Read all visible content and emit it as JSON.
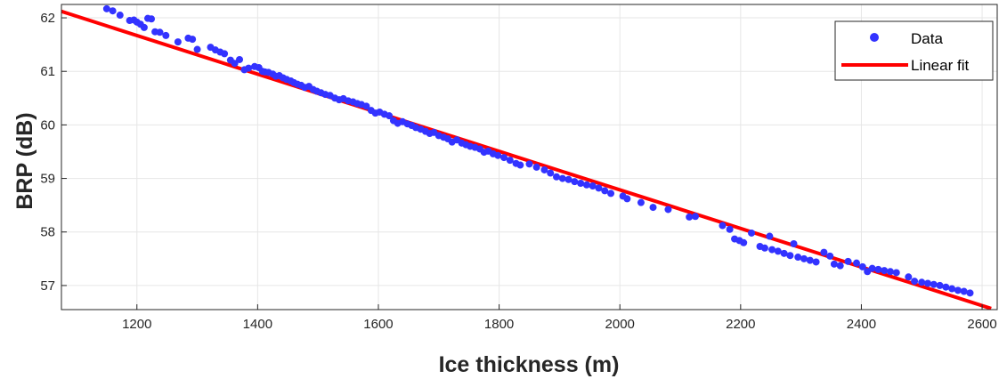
{
  "chart_data": {
    "type": "scatter",
    "xlabel": "Ice thickness (m)",
    "ylabel": "BRP (dB)",
    "xlim": [
      1075,
      2625
    ],
    "ylim": [
      56.55,
      62.25
    ],
    "xticks": [
      "1200",
      "1400",
      "1600",
      "1800",
      "2000",
      "2200",
      "2400",
      "2600"
    ],
    "yticks": [
      "57",
      "58",
      "59",
      "60",
      "61",
      "62"
    ],
    "grid": true,
    "legend_position": "top-right",
    "colors": {
      "data": "#3333ff",
      "fit": "#ff0000"
    },
    "series": [
      {
        "name": "Data",
        "marker": "circle",
        "points": [
          [
            1150,
            62.17
          ],
          [
            1160,
            62.13
          ],
          [
            1172,
            62.05
          ],
          [
            1188,
            61.95
          ],
          [
            1195,
            61.96
          ],
          [
            1200,
            61.92
          ],
          [
            1206,
            61.88
          ],
          [
            1212,
            61.82
          ],
          [
            1218,
            61.99
          ],
          [
            1224,
            61.98
          ],
          [
            1230,
            61.74
          ],
          [
            1238,
            61.73
          ],
          [
            1248,
            61.67
          ],
          [
            1268,
            61.55
          ],
          [
            1285,
            61.62
          ],
          [
            1292,
            61.6
          ],
          [
            1300,
            61.41
          ],
          [
            1322,
            61.45
          ],
          [
            1330,
            61.4
          ],
          [
            1338,
            61.36
          ],
          [
            1345,
            61.33
          ],
          [
            1355,
            61.21
          ],
          [
            1362,
            61.15
          ],
          [
            1370,
            61.22
          ],
          [
            1378,
            61.03
          ],
          [
            1385,
            61.06
          ],
          [
            1395,
            61.09
          ],
          [
            1402,
            61.07
          ],
          [
            1408,
            61.0
          ],
          [
            1412,
            60.99
          ],
          [
            1418,
            60.98
          ],
          [
            1425,
            60.95
          ],
          [
            1430,
            60.91
          ],
          [
            1436,
            60.92
          ],
          [
            1442,
            60.88
          ],
          [
            1448,
            60.85
          ],
          [
            1455,
            60.82
          ],
          [
            1460,
            60.79
          ],
          [
            1466,
            60.76
          ],
          [
            1472,
            60.74
          ],
          [
            1478,
            60.7
          ],
          [
            1485,
            60.72
          ],
          [
            1492,
            60.66
          ],
          [
            1498,
            60.63
          ],
          [
            1505,
            60.6
          ],
          [
            1512,
            60.57
          ],
          [
            1520,
            60.55
          ],
          [
            1528,
            60.5
          ],
          [
            1535,
            60.47
          ],
          [
            1542,
            60.49
          ],
          [
            1550,
            60.45
          ],
          [
            1558,
            60.43
          ],
          [
            1565,
            60.4
          ],
          [
            1572,
            60.38
          ],
          [
            1580,
            60.35
          ],
          [
            1588,
            60.27
          ],
          [
            1595,
            60.22
          ],
          [
            1602,
            60.24
          ],
          [
            1610,
            60.2
          ],
          [
            1618,
            60.17
          ],
          [
            1625,
            60.08
          ],
          [
            1632,
            60.03
          ],
          [
            1640,
            60.06
          ],
          [
            1648,
            60.02
          ],
          [
            1655,
            59.99
          ],
          [
            1662,
            59.95
          ],
          [
            1670,
            59.92
          ],
          [
            1678,
            59.88
          ],
          [
            1685,
            59.84
          ],
          [
            1692,
            59.86
          ],
          [
            1700,
            59.8
          ],
          [
            1708,
            59.77
          ],
          [
            1715,
            59.74
          ],
          [
            1722,
            59.68
          ],
          [
            1730,
            59.72
          ],
          [
            1738,
            59.66
          ],
          [
            1745,
            59.63
          ],
          [
            1752,
            59.6
          ],
          [
            1760,
            59.58
          ],
          [
            1768,
            59.55
          ],
          [
            1775,
            59.49
          ],
          [
            1782,
            59.51
          ],
          [
            1790,
            59.46
          ],
          [
            1798,
            59.43
          ],
          [
            1808,
            59.39
          ],
          [
            1818,
            59.34
          ],
          [
            1828,
            59.28
          ],
          [
            1835,
            59.25
          ],
          [
            1850,
            59.27
          ],
          [
            1862,
            59.21
          ],
          [
            1875,
            59.16
          ],
          [
            1885,
            59.1
          ],
          [
            1895,
            59.03
          ],
          [
            1905,
            59.0
          ],
          [
            1915,
            58.98
          ],
          [
            1925,
            58.94
          ],
          [
            1935,
            58.91
          ],
          [
            1945,
            58.88
          ],
          [
            1955,
            58.86
          ],
          [
            1965,
            58.82
          ],
          [
            1975,
            58.77
          ],
          [
            1985,
            58.72
          ],
          [
            2005,
            58.67
          ],
          [
            2012,
            58.62
          ],
          [
            2035,
            58.55
          ],
          [
            2055,
            58.46
          ],
          [
            2080,
            58.42
          ],
          [
            2115,
            58.28
          ],
          [
            2125,
            58.29
          ],
          [
            2170,
            58.12
          ],
          [
            2182,
            58.05
          ],
          [
            2190,
            57.87
          ],
          [
            2198,
            57.84
          ],
          [
            2205,
            57.8
          ],
          [
            2218,
            57.98
          ],
          [
            2232,
            57.73
          ],
          [
            2240,
            57.7
          ],
          [
            2248,
            57.92
          ],
          [
            2252,
            57.67
          ],
          [
            2262,
            57.64
          ],
          [
            2272,
            57.6
          ],
          [
            2282,
            57.56
          ],
          [
            2288,
            57.78
          ],
          [
            2295,
            57.53
          ],
          [
            2305,
            57.5
          ],
          [
            2315,
            57.47
          ],
          [
            2325,
            57.44
          ],
          [
            2338,
            57.62
          ],
          [
            2348,
            57.55
          ],
          [
            2355,
            57.4
          ],
          [
            2365,
            57.37
          ],
          [
            2378,
            57.45
          ],
          [
            2392,
            57.42
          ],
          [
            2402,
            57.35
          ],
          [
            2410,
            57.26
          ],
          [
            2418,
            57.32
          ],
          [
            2428,
            57.3
          ],
          [
            2438,
            57.28
          ],
          [
            2448,
            57.26
          ],
          [
            2458,
            57.24
          ],
          [
            2478,
            57.16
          ],
          [
            2488,
            57.08
          ],
          [
            2500,
            57.06
          ],
          [
            2510,
            57.04
          ],
          [
            2520,
            57.02
          ],
          [
            2530,
            57.0
          ],
          [
            2540,
            56.97
          ],
          [
            2550,
            56.94
          ],
          [
            2560,
            56.91
          ],
          [
            2570,
            56.89
          ],
          [
            2580,
            56.86
          ]
        ]
      },
      {
        "name": "Linear fit",
        "type": "line",
        "points": [
          [
            1075,
            62.12
          ],
          [
            2615,
            56.57
          ]
        ]
      }
    ]
  }
}
